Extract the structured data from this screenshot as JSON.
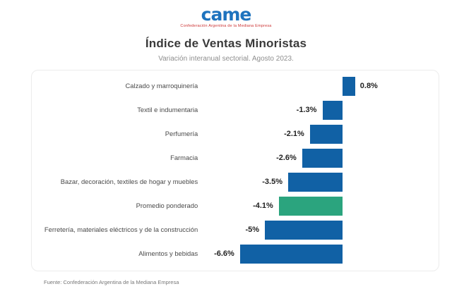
{
  "logo": {
    "text": "came",
    "tagline": "Confederación Argentina de la Mediana Empresa"
  },
  "header": {
    "title": "Índice de Ventas Minoristas",
    "subtitle": "Variación interanual sectorial. Agosto 2023."
  },
  "footer": {
    "source": "Fuente: Confederación Argentina de la Mediana Empresa"
  },
  "colors": {
    "bar": "#1161a5",
    "highlight": "#2ba47e"
  },
  "chart_data": {
    "type": "bar",
    "orientation": "horizontal",
    "title": "Índice de Ventas Minoristas",
    "subtitle": "Variación interanual sectorial. Agosto 2023.",
    "xlim": [
      -7,
      1
    ],
    "unit": "%",
    "highlight_category": "Promedio ponderado",
    "categories": [
      "Calzado y marroquinería",
      "Textil e indumentaria",
      "Perfumería",
      "Farmacia",
      "Bazar, decoración, textiles de hogar y muebles",
      "Promedio ponderado",
      "Ferretería, materiales eléctricos y de la construcción",
      "Alimentos y bebidas"
    ],
    "values": [
      0.8,
      -1.3,
      -2.1,
      -2.6,
      -3.5,
      -4.1,
      -5,
      -6.6
    ],
    "value_labels": [
      "0.8%",
      "-1.3%",
      "-2.1%",
      "-2.6%",
      "-3.5%",
      "-4.1%",
      "-5%",
      "-6.6%"
    ]
  }
}
